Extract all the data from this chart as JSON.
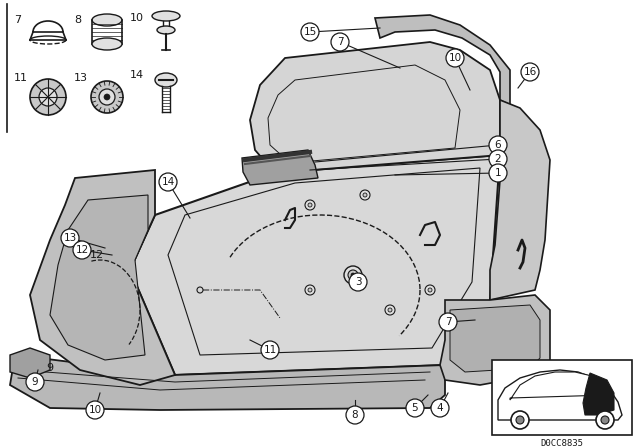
{
  "bg_color": "#ffffff",
  "fig_width": 6.4,
  "fig_height": 4.48,
  "dpi": 100,
  "diagram_code": "D0CC8835",
  "line_color": "#1a1a1a",
  "gray_fill": "#c8c8c8",
  "light_fill": "#e0e0e0",
  "mid_fill": "#b0b0b0"
}
